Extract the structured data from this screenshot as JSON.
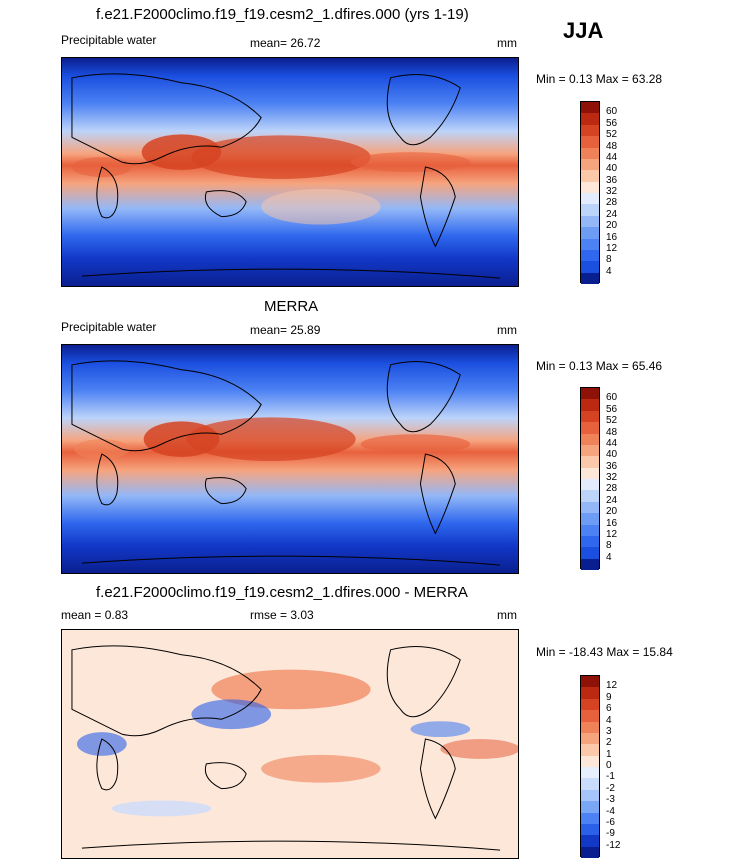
{
  "season": "JJA",
  "colors": {
    "abs_scale": [
      "#0a1f8f",
      "#1238c8",
      "#1b4fe0",
      "#2f68ee",
      "#4c82f3",
      "#6d9cf5",
      "#94b8f7",
      "#bcd3fa",
      "#e2ecfd",
      "#fde7d9",
      "#fbc8a9",
      "#f6a47e",
      "#f08259",
      "#e8613d",
      "#d54322",
      "#bb2a10",
      "#8f1208"
    ],
    "diff_scale": [
      "#0a1f8f",
      "#1238c8",
      "#2b60e8",
      "#4c82f3",
      "#7aa6f6",
      "#a6c4f9",
      "#cadcfb",
      "#e7effd",
      "#fde7d9",
      "#fbc8a9",
      "#f6a47e",
      "#f08259",
      "#e8613d",
      "#d54322",
      "#bb2a10",
      "#8f1208"
    ]
  },
  "panels": [
    {
      "id": "model",
      "title": "f.e21.F2000climo.f19_f19.cesm2_1.dfires.000 (yrs 1-19)",
      "left_label": "Precipitable water",
      "mid_label": "mean=  26.72",
      "units": "mm",
      "minmax": "Min =   0.13 Max =  63.28",
      "cbar_labels": [
        "60",
        "56",
        "52",
        "48",
        "44",
        "40",
        "36",
        "32",
        "28",
        "24",
        "20",
        "16",
        "12",
        "8",
        "4"
      ]
    },
    {
      "id": "obs",
      "title": "MERRA",
      "left_label": "Precipitable water",
      "mid_label": "mean=  25.89",
      "units": "mm",
      "minmax": "Min =   0.13 Max =  65.46",
      "cbar_labels": [
        "60",
        "56",
        "52",
        "48",
        "44",
        "40",
        "36",
        "32",
        "28",
        "24",
        "20",
        "16",
        "12",
        "8",
        "4"
      ]
    },
    {
      "id": "diff",
      "title": "f.e21.F2000climo.f19_f19.cesm2_1.dfires.000 - MERRA",
      "left_label": "mean =   0.83",
      "mid_label": "rmse =   3.03",
      "units": "mm",
      "minmax": "Min = -18.43 Max =  15.84",
      "cbar_labels": [
        "12",
        "9",
        "6",
        "4",
        "3",
        "2",
        "1",
        "0",
        "-1",
        "-2",
        "-3",
        "-4",
        "-6",
        "-9",
        "-12"
      ]
    }
  ],
  "chart_data": [
    {
      "type": "heatmap",
      "title": "f.e21.F2000climo.f19_f19.cesm2_1.dfires.000 (yrs 1-19)",
      "variable": "Precipitable water",
      "units": "mm",
      "mean": 26.72,
      "min": 0.13,
      "max": 63.28,
      "contour_levels": [
        4,
        8,
        12,
        16,
        20,
        24,
        28,
        32,
        36,
        40,
        44,
        48,
        52,
        56,
        60
      ]
    },
    {
      "type": "heatmap",
      "title": "MERRA",
      "variable": "Precipitable water",
      "units": "mm",
      "mean": 25.89,
      "min": 0.13,
      "max": 65.46,
      "contour_levels": [
        4,
        8,
        12,
        16,
        20,
        24,
        28,
        32,
        36,
        40,
        44,
        48,
        52,
        56,
        60
      ]
    },
    {
      "type": "heatmap",
      "title": "f.e21.F2000climo.f19_f19.cesm2_1.dfires.000 - MERRA",
      "units": "mm",
      "mean": 0.83,
      "rmse": 3.03,
      "min": -18.43,
      "max": 15.84,
      "contour_levels": [
        -12,
        -9,
        -6,
        -4,
        -3,
        -2,
        -1,
        0,
        1,
        2,
        3,
        4,
        6,
        9,
        12
      ]
    }
  ]
}
